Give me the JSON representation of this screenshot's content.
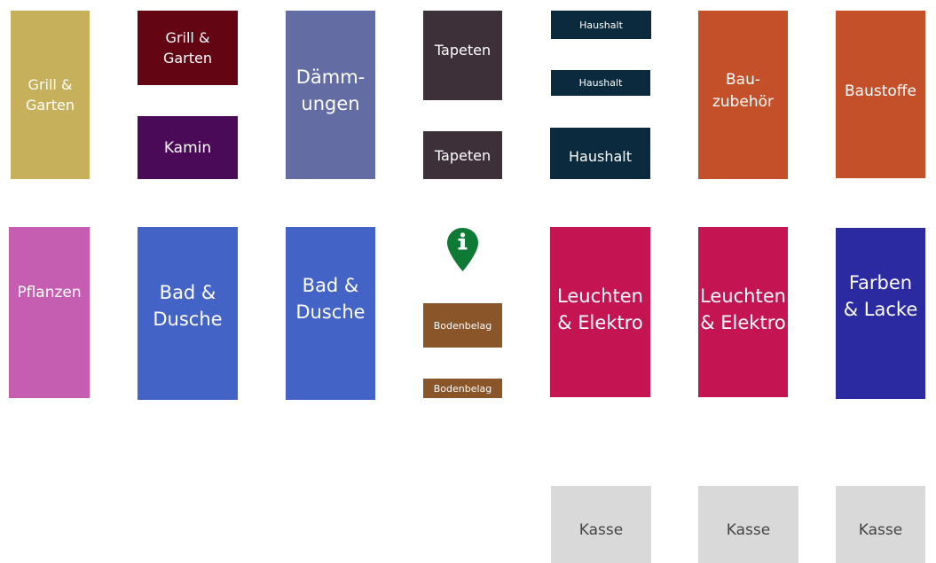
{
  "map": {
    "info_icon": "info-pin-icon",
    "info_color": "#0e7a35",
    "departments": [
      {
        "id": "grill-garten-1",
        "label": "Grill &\nGarten",
        "color": "#c6b05c"
      },
      {
        "id": "grill-garten-2",
        "label": "Grill &\nGarten",
        "color": "#630513"
      },
      {
        "id": "kamin",
        "label": "Kamin",
        "color": "#4a0a57"
      },
      {
        "id": "daemmungen",
        "label": "Dämm-\nungen",
        "color": "#636da3"
      },
      {
        "id": "tapeten-1",
        "label": "Tapeten",
        "color": "#3d3039"
      },
      {
        "id": "tapeten-2",
        "label": "Tapeten",
        "color": "#3d3039"
      },
      {
        "id": "haushalt-1",
        "label": "Haushalt",
        "color": "#0b2a3d"
      },
      {
        "id": "haushalt-2",
        "label": "Haushalt",
        "color": "#0b2a3d"
      },
      {
        "id": "haushalt-3",
        "label": "Haushalt",
        "color": "#0b2a3d"
      },
      {
        "id": "bauzubehoer",
        "label": "Bau-\nzubehör",
        "color": "#c4502a"
      },
      {
        "id": "baustoffe",
        "label": "Baustoffe",
        "color": "#c4502a"
      },
      {
        "id": "pflanzen",
        "label": "Pflanzen",
        "color": "#c55eb0"
      },
      {
        "id": "bad-dusche-1",
        "label": "Bad &\nDusche",
        "color": "#4463c7"
      },
      {
        "id": "bad-dusche-2",
        "label": "Bad &\nDusche",
        "color": "#4463c7"
      },
      {
        "id": "bodenbelag-1",
        "label": "Bodenbelag",
        "color": "#8b552a"
      },
      {
        "id": "bodenbelag-2",
        "label": "Bodenbelag",
        "color": "#8b552a"
      },
      {
        "id": "leuchten-elektro-1",
        "label": "Leuchten\n& Elektro",
        "color": "#c41552"
      },
      {
        "id": "leuchten-elektro-2",
        "label": "Leuchten\n& Elektro",
        "color": "#c41552"
      },
      {
        "id": "farben-lacke",
        "label": "Farben\n& Lacke",
        "color": "#2c2aa0"
      },
      {
        "id": "kasse-1",
        "label": "Kasse",
        "color": "#d9d9d9"
      },
      {
        "id": "kasse-2",
        "label": "Kasse",
        "color": "#d9d9d9"
      },
      {
        "id": "kasse-3",
        "label": "Kasse",
        "color": "#d9d9d9"
      }
    ]
  }
}
